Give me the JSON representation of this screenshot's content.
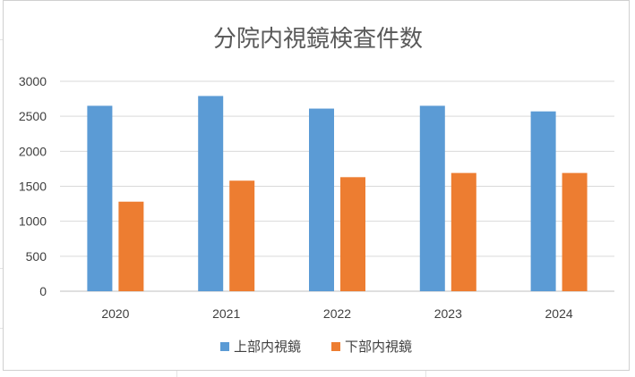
{
  "chart_data": {
    "type": "bar",
    "title": "分院内視鏡検査件数",
    "categories": [
      "2020",
      "2021",
      "2022",
      "2023",
      "2024"
    ],
    "series": [
      {
        "name": "上部内視鏡",
        "color": "#5b9bd5",
        "values": [
          2650,
          2790,
          2610,
          2650,
          2570
        ]
      },
      {
        "name": "下部内視鏡",
        "color": "#ed7d31",
        "values": [
          1280,
          1580,
          1630,
          1690,
          1690
        ]
      }
    ],
    "ylim": [
      0,
      3000
    ],
    "yticks": [
      "0",
      "500",
      "1000",
      "1500",
      "2000",
      "2500",
      "3000"
    ],
    "grid": true,
    "legend_position": "bottom"
  }
}
